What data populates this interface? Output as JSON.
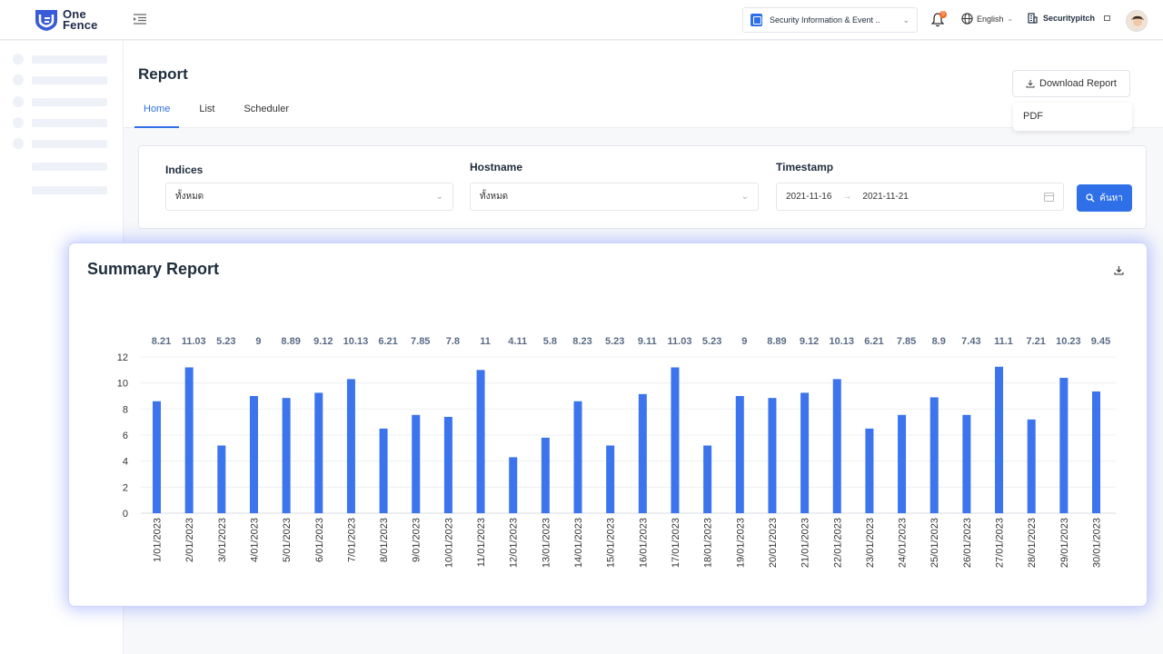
{
  "header": {
    "logo_line1": "One",
    "logo_line2": "Fence",
    "app_select": "Security Information & Event ..",
    "notification_count": "0",
    "language": "English",
    "organization": "Securitypitch"
  },
  "page": {
    "title": "Report",
    "tabs": [
      {
        "label": "Home",
        "active": true
      },
      {
        "label": "List",
        "active": false
      },
      {
        "label": "Scheduler",
        "active": false
      }
    ],
    "download_button": "Download Report",
    "download_options": [
      "PDF"
    ]
  },
  "filters": {
    "indices_label": "Indices",
    "indices_value": "ทั้งหมด",
    "hostname_label": "Hostname",
    "hostname_value": "ทั้งหมด",
    "timestamp_label": "Timestamp",
    "date_from": "2021-11-16",
    "date_to": "2021-11-21",
    "search_button": "ค้นหา"
  },
  "summary": {
    "title": "Summary Report"
  },
  "colors": {
    "accent": "#2f6fe8",
    "bar": "#3b74ec",
    "badge": "#f56a26"
  },
  "chart_data": {
    "type": "bar",
    "title": "Summary Report",
    "xlabel": "",
    "ylabel": "",
    "ylim": [
      0,
      12
    ],
    "yticks": [
      0,
      2,
      4,
      6,
      8,
      10,
      12
    ],
    "grid": true,
    "categories": [
      "1/01/2023",
      "2/01/2023",
      "3/01/2023",
      "4/01/2023",
      "5/01/2023",
      "6/01/2023",
      "7/01/2023",
      "8/01/2023",
      "9/01/2023",
      "10/01/2023",
      "11/01/2023",
      "12/01/2023",
      "13/01/2023",
      "14/01/2023",
      "15/01/2023",
      "16/01/2023",
      "17/01/2023",
      "18/01/2023",
      "19/01/2023",
      "20/01/2023",
      "21/01/2023",
      "22/01/2023",
      "23/01/2023",
      "24/01/2023",
      "25/01/2023",
      "26/01/2023",
      "27/01/2023",
      "28/01/2023",
      "29/01/2023",
      "30/01/2023"
    ],
    "values": [
      8.21,
      11.03,
      5.23,
      9,
      8.89,
      9.12,
      10.13,
      6.21,
      7.85,
      7.8,
      11,
      4.11,
      5.8,
      8.23,
      5.23,
      9.11,
      11.03,
      5.23,
      9,
      8.89,
      9.12,
      10.13,
      6.21,
      7.85,
      8.9,
      7.43,
      11.1,
      7.21,
      10.23,
      9.45
    ],
    "bar_heights": [
      8.6,
      11.2,
      5.2,
      9,
      8.85,
      9.25,
      10.3,
      6.5,
      7.55,
      7.4,
      11,
      4.3,
      5.8,
      8.6,
      5.2,
      9.15,
      11.2,
      5.2,
      9,
      8.85,
      9.25,
      10.3,
      6.5,
      7.55,
      8.9,
      7.55,
      11.25,
      7.2,
      10.4,
      9.35
    ]
  }
}
